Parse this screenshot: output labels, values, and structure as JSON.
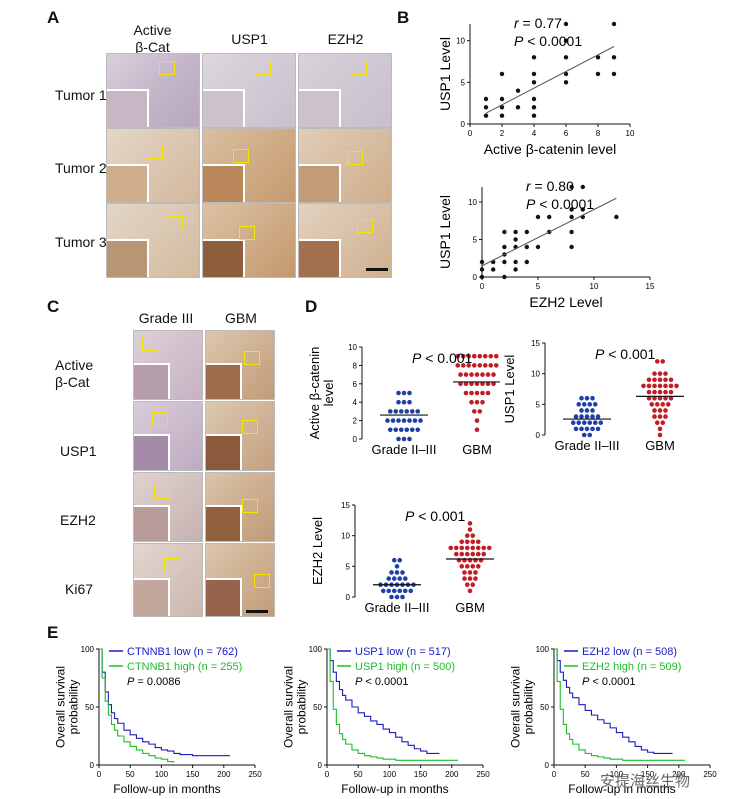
{
  "panel_letters": {
    "A": "A",
    "B": "B",
    "C": "C",
    "D": "D",
    "E": "E"
  },
  "panelA": {
    "columns": [
      "Active\nβ-Cat",
      "USP1",
      "EZH2"
    ],
    "rows": [
      "Tumor 1",
      "Tumor 2",
      "Tumor 3"
    ]
  },
  "panelC": {
    "columns": [
      "Grade III",
      "GBM"
    ],
    "rows": [
      "Active\nβ-Cat",
      "USP1",
      "EZH2",
      "Ki67"
    ]
  },
  "colors": {
    "low_ihc": "#c9b8cc",
    "high_ihc": "#c8a27f",
    "grade_dot": "#1f3fa8",
    "gbm_dot": "#c01d24",
    "km_low": "#1b1bbf",
    "km_high": "#1ebd2b"
  },
  "chart_data": [
    {
      "id": "B1",
      "type": "scatter",
      "stat_r": "= 0.77",
      "stat_p": "< 0.0001",
      "xlabel": "Active β-catenin level",
      "ylabel": "USP1 Level",
      "xlim": [
        0,
        10
      ],
      "ylim": [
        0,
        12
      ],
      "xticks": [
        "0",
        "2",
        "4",
        "6",
        "8",
        "10"
      ],
      "yticks": [
        "0",
        "5",
        "10"
      ],
      "points": [
        [
          1,
          1
        ],
        [
          1,
          2
        ],
        [
          1,
          3
        ],
        [
          2,
          1
        ],
        [
          2,
          2
        ],
        [
          2,
          3
        ],
        [
          2,
          6
        ],
        [
          3,
          2
        ],
        [
          3,
          4
        ],
        [
          4,
          1
        ],
        [
          4,
          2
        ],
        [
          4,
          3
        ],
        [
          4,
          5
        ],
        [
          4,
          6
        ],
        [
          4,
          8
        ],
        [
          6,
          5
        ],
        [
          6,
          6
        ],
        [
          6,
          8
        ],
        [
          6,
          10
        ],
        [
          6,
          12
        ],
        [
          8,
          6
        ],
        [
          8,
          8
        ],
        [
          9,
          6
        ],
        [
          9,
          8
        ],
        [
          9,
          12
        ]
      ],
      "fit": [
        [
          1,
          1.3
        ],
        [
          9,
          9.3
        ]
      ]
    },
    {
      "id": "B2",
      "type": "scatter",
      "stat_r": "= 0.80",
      "stat_p": "< 0.0001",
      "xlabel": "EZH2 Level",
      "ylabel": "USP1 Level",
      "xlim": [
        0,
        15
      ],
      "ylim": [
        0,
        12
      ],
      "xticks": [
        "0",
        "5",
        "10",
        "15"
      ],
      "yticks": [
        "0",
        "5",
        "10"
      ],
      "points": [
        [
          0,
          0
        ],
        [
          0,
          1
        ],
        [
          0,
          2
        ],
        [
          1,
          1
        ],
        [
          1,
          2
        ],
        [
          2,
          0
        ],
        [
          2,
          2
        ],
        [
          2,
          3
        ],
        [
          2,
          4
        ],
        [
          2,
          6
        ],
        [
          3,
          1
        ],
        [
          3,
          2
        ],
        [
          3,
          4
        ],
        [
          3,
          5
        ],
        [
          3,
          6
        ],
        [
          4,
          2
        ],
        [
          4,
          4
        ],
        [
          4,
          6
        ],
        [
          5,
          4
        ],
        [
          5,
          8
        ],
        [
          6,
          6
        ],
        [
          6,
          8
        ],
        [
          8,
          4
        ],
        [
          8,
          6
        ],
        [
          8,
          8
        ],
        [
          8,
          9
        ],
        [
          8,
          12
        ],
        [
          9,
          8
        ],
        [
          9,
          9
        ],
        [
          9,
          12
        ],
        [
          12,
          8
        ]
      ],
      "fit": [
        [
          0,
          1.5
        ],
        [
          12,
          10.5
        ]
      ]
    },
    {
      "id": "D1",
      "type": "scatter",
      "stat_p": "< 0.001",
      "ylabel": "Active β-catenin\nlevel",
      "categories": [
        "Grade II–III",
        "GBM"
      ],
      "ylim": [
        0,
        10
      ],
      "yticks": [
        "0",
        "2",
        "4",
        "6",
        "8",
        "10"
      ],
      "series": [
        {
          "name": "Grade II–III",
          "mean": 2.6,
          "values": [
            5,
            5,
            5,
            4,
            4,
            4,
            3,
            3,
            3,
            3,
            3,
            3,
            2,
            2,
            2,
            2,
            2,
            2,
            2,
            1,
            1,
            1,
            1,
            1,
            1,
            0,
            0,
            0
          ]
        },
        {
          "name": "GBM",
          "mean": 6.2,
          "values": [
            9,
            9,
            9,
            9,
            9,
            9,
            9,
            9,
            8,
            8,
            8,
            8,
            8,
            8,
            8,
            8,
            7,
            7,
            7,
            7,
            7,
            7,
            7,
            6,
            6,
            6,
            6,
            6,
            6,
            6,
            5,
            5,
            5,
            5,
            5,
            4,
            4,
            4,
            3,
            3,
            2,
            1
          ]
        }
      ]
    },
    {
      "id": "D2",
      "type": "scatter",
      "stat_p": "< 0.001",
      "ylabel": "USP1 Level",
      "categories": [
        "Grade II–III",
        "GBM"
      ],
      "ylim": [
        0,
        15
      ],
      "yticks": [
        "0",
        "5",
        "10",
        "15"
      ],
      "series": [
        {
          "name": "Grade II–III",
          "mean": 2.6,
          "values": [
            6,
            6,
            6,
            5,
            5,
            5,
            5,
            4,
            4,
            4,
            3,
            3,
            3,
            3,
            3,
            2,
            2,
            2,
            2,
            2,
            2,
            1,
            1,
            1,
            1,
            1,
            0,
            0
          ]
        },
        {
          "name": "GBM",
          "mean": 6.3,
          "values": [
            12,
            12,
            10,
            10,
            10,
            9,
            9,
            9,
            9,
            9,
            8,
            8,
            8,
            8,
            8,
            8,
            8,
            7,
            7,
            7,
            7,
            7,
            6,
            6,
            6,
            6,
            6,
            5,
            5,
            5,
            5,
            4,
            4,
            4,
            3,
            3,
            3,
            2,
            2,
            1,
            0
          ]
        }
      ]
    },
    {
      "id": "D3",
      "type": "scatter",
      "stat_p": "< 0.001",
      "ylabel": "EZH2 Level",
      "categories": [
        "Grade II–III",
        "GBM"
      ],
      "ylim": [
        0,
        15
      ],
      "yticks": [
        "0",
        "5",
        "10",
        "15"
      ],
      "series": [
        {
          "name": "Grade II–III",
          "mean": 2.0,
          "values": [
            6,
            6,
            5,
            4,
            4,
            4,
            3,
            3,
            3,
            3,
            2,
            2,
            2,
            2,
            2,
            2,
            2,
            1,
            1,
            1,
            1,
            1,
            1,
            0,
            0,
            0
          ]
        },
        {
          "name": "GBM",
          "mean": 6.2,
          "values": [
            12,
            11,
            10,
            10,
            9,
            9,
            9,
            9,
            8,
            8,
            8,
            8,
            8,
            8,
            8,
            8,
            7,
            7,
            7,
            7,
            7,
            7,
            6,
            6,
            6,
            6,
            6,
            5,
            5,
            5,
            5,
            4,
            4,
            4,
            3,
            3,
            3,
            2,
            2,
            1
          ]
        }
      ]
    },
    {
      "id": "E1",
      "type": "line",
      "ylabel": "Overall survival\nprobability",
      "xlabel": "Follow-up in months",
      "xlim": [
        0,
        250
      ],
      "ylim": [
        0,
        100
      ],
      "xticks": [
        "0",
        "50",
        "100",
        "150",
        "200",
        "250"
      ],
      "yticks": [
        "0",
        "50",
        "100"
      ],
      "legend": [
        {
          "text": "CTNNB1 low (n = 762)",
          "color": "km_low"
        },
        {
          "text": "CTNNB1 high (n = 255)",
          "color": "km_high"
        }
      ],
      "stat_p": "= 0.0086",
      "series": [
        {
          "name": "CTNNB1 low",
          "x": [
            0,
            5,
            10,
            15,
            20,
            25,
            30,
            40,
            50,
            60,
            70,
            80,
            90,
            100,
            110,
            120,
            130,
            150,
            180,
            210
          ],
          "y": [
            100,
            80,
            63,
            52,
            45,
            40,
            36,
            30,
            26,
            23,
            20,
            18,
            15,
            13,
            12,
            10,
            9,
            8,
            8,
            8
          ]
        },
        {
          "name": "CTNNB1 high",
          "x": [
            0,
            5,
            10,
            15,
            20,
            25,
            30,
            40,
            50,
            60,
            70,
            80,
            90,
            100,
            110,
            120
          ],
          "y": [
            100,
            75,
            55,
            43,
            35,
            30,
            25,
            20,
            16,
            13,
            10,
            8,
            6,
            5,
            3,
            2
          ]
        }
      ]
    },
    {
      "id": "E2",
      "type": "line",
      "ylabel": "Overall survival\nprobability",
      "xlabel": "Follow-up in months",
      "xlim": [
        0,
        250
      ],
      "ylim": [
        0,
        100
      ],
      "xticks": [
        "0",
        "50",
        "100",
        "150",
        "200",
        "250"
      ],
      "yticks": [
        "0",
        "50",
        "100"
      ],
      "legend": [
        {
          "text": "USP1 low (n = 517)",
          "color": "km_low"
        },
        {
          "text": "USP1 high (n = 500)",
          "color": "km_high"
        }
      ],
      "stat_p": "< 0.0001",
      "series": [
        {
          "name": "USP1 low",
          "x": [
            0,
            5,
            10,
            15,
            20,
            25,
            30,
            40,
            50,
            60,
            70,
            80,
            90,
            100,
            110,
            120,
            130,
            140,
            150,
            160,
            170,
            180
          ],
          "y": [
            100,
            90,
            80,
            72,
            65,
            60,
            56,
            50,
            45,
            42,
            38,
            35,
            31,
            28,
            24,
            20,
            17,
            14,
            12,
            10,
            10,
            10
          ]
        },
        {
          "name": "USP1 high",
          "x": [
            0,
            5,
            10,
            15,
            20,
            25,
            30,
            40,
            50,
            60,
            70,
            80,
            90,
            100,
            110,
            120,
            130,
            150,
            180,
            210
          ],
          "y": [
            100,
            72,
            48,
            35,
            27,
            22,
            18,
            13,
            10,
            8,
            7,
            6,
            5,
            5,
            4,
            4,
            4,
            4,
            4,
            4
          ]
        }
      ]
    },
    {
      "id": "E3",
      "type": "line",
      "ylabel": "Overall survival\nprobability",
      "xlabel": "Follow-up in months",
      "xlim": [
        0,
        250
      ],
      "ylim": [
        0,
        100
      ],
      "xticks": [
        "0",
        "50",
        "100",
        "150",
        "200",
        "250"
      ],
      "yticks": [
        "0",
        "50",
        "100"
      ],
      "legend": [
        {
          "text": "EZH2 low (n = 508)",
          "color": "km_low"
        },
        {
          "text": "EZH2 high (n = 509)",
          "color": "km_high"
        }
      ],
      "stat_p": "< 0.0001",
      "series": [
        {
          "name": "EZH2 low",
          "x": [
            0,
            5,
            10,
            15,
            20,
            25,
            30,
            40,
            50,
            60,
            70,
            80,
            90,
            100,
            110,
            120,
            130,
            140,
            150,
            160,
            170,
            180,
            190
          ],
          "y": [
            100,
            90,
            80,
            73,
            67,
            62,
            58,
            52,
            47,
            43,
            39,
            36,
            32,
            28,
            24,
            20,
            16,
            13,
            11,
            10,
            10,
            10,
            10
          ]
        },
        {
          "name": "EZH2 high",
          "x": [
            0,
            5,
            10,
            15,
            20,
            25,
            30,
            40,
            50,
            60,
            70,
            80,
            90,
            100,
            110,
            120,
            130,
            150,
            180,
            210
          ],
          "y": [
            100,
            72,
            48,
            35,
            27,
            22,
            18,
            13,
            10,
            8,
            7,
            6,
            5,
            5,
            4,
            4,
            4,
            4,
            4,
            4
          ]
        }
      ]
    }
  ],
  "watermark": "安提海丝生物"
}
